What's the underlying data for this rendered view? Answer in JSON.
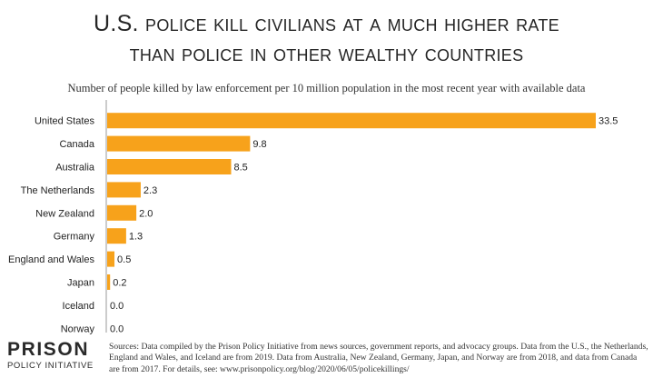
{
  "header": {
    "title_line1": "U.S. police kill civilians at a much higher rate",
    "title_line2": "than police in other wealthy countries",
    "subtitle": "Number of people killed by law enforcement per 10 million population in the most recent year with available data"
  },
  "chart_data": {
    "type": "bar",
    "orientation": "horizontal",
    "categories": [
      "United States",
      "Canada",
      "Australia",
      "The Netherlands",
      "New Zealand",
      "Germany",
      "England and Wales",
      "Japan",
      "Iceland",
      "Norway"
    ],
    "values": [
      33.5,
      9.8,
      8.5,
      2.3,
      2.0,
      1.3,
      0.5,
      0.2,
      0.0,
      0.0
    ],
    "value_labels": [
      "33.5",
      "9.8",
      "8.5",
      "2.3",
      "2.0",
      "1.3",
      "0.5",
      "0.2",
      "0.0",
      "0.0"
    ],
    "bar_color": "#F7A21B",
    "xlim": [
      0,
      33.5
    ],
    "grid": false,
    "title": "U.S. police kill civilians at a much higher rate than police in other wealthy countries",
    "xlabel": "",
    "ylabel": ""
  },
  "logo": {
    "line1": "PRISON",
    "line2": "POLICY INITIATIVE"
  },
  "footer": {
    "sources": "Sources: Data compiled by the Prison Policy Initiative from news sources, government reports, and advocacy groups. Data from the U.S., the Netherlands, England and Wales, and Iceland are from 2019. Data from Australia, New Zealand, Germany, Japan, and Norway are from 2018, and data from Canada are from 2017. For details, see: www.prisonpolicy.org/blog/2020/06/05/policekillings/"
  }
}
